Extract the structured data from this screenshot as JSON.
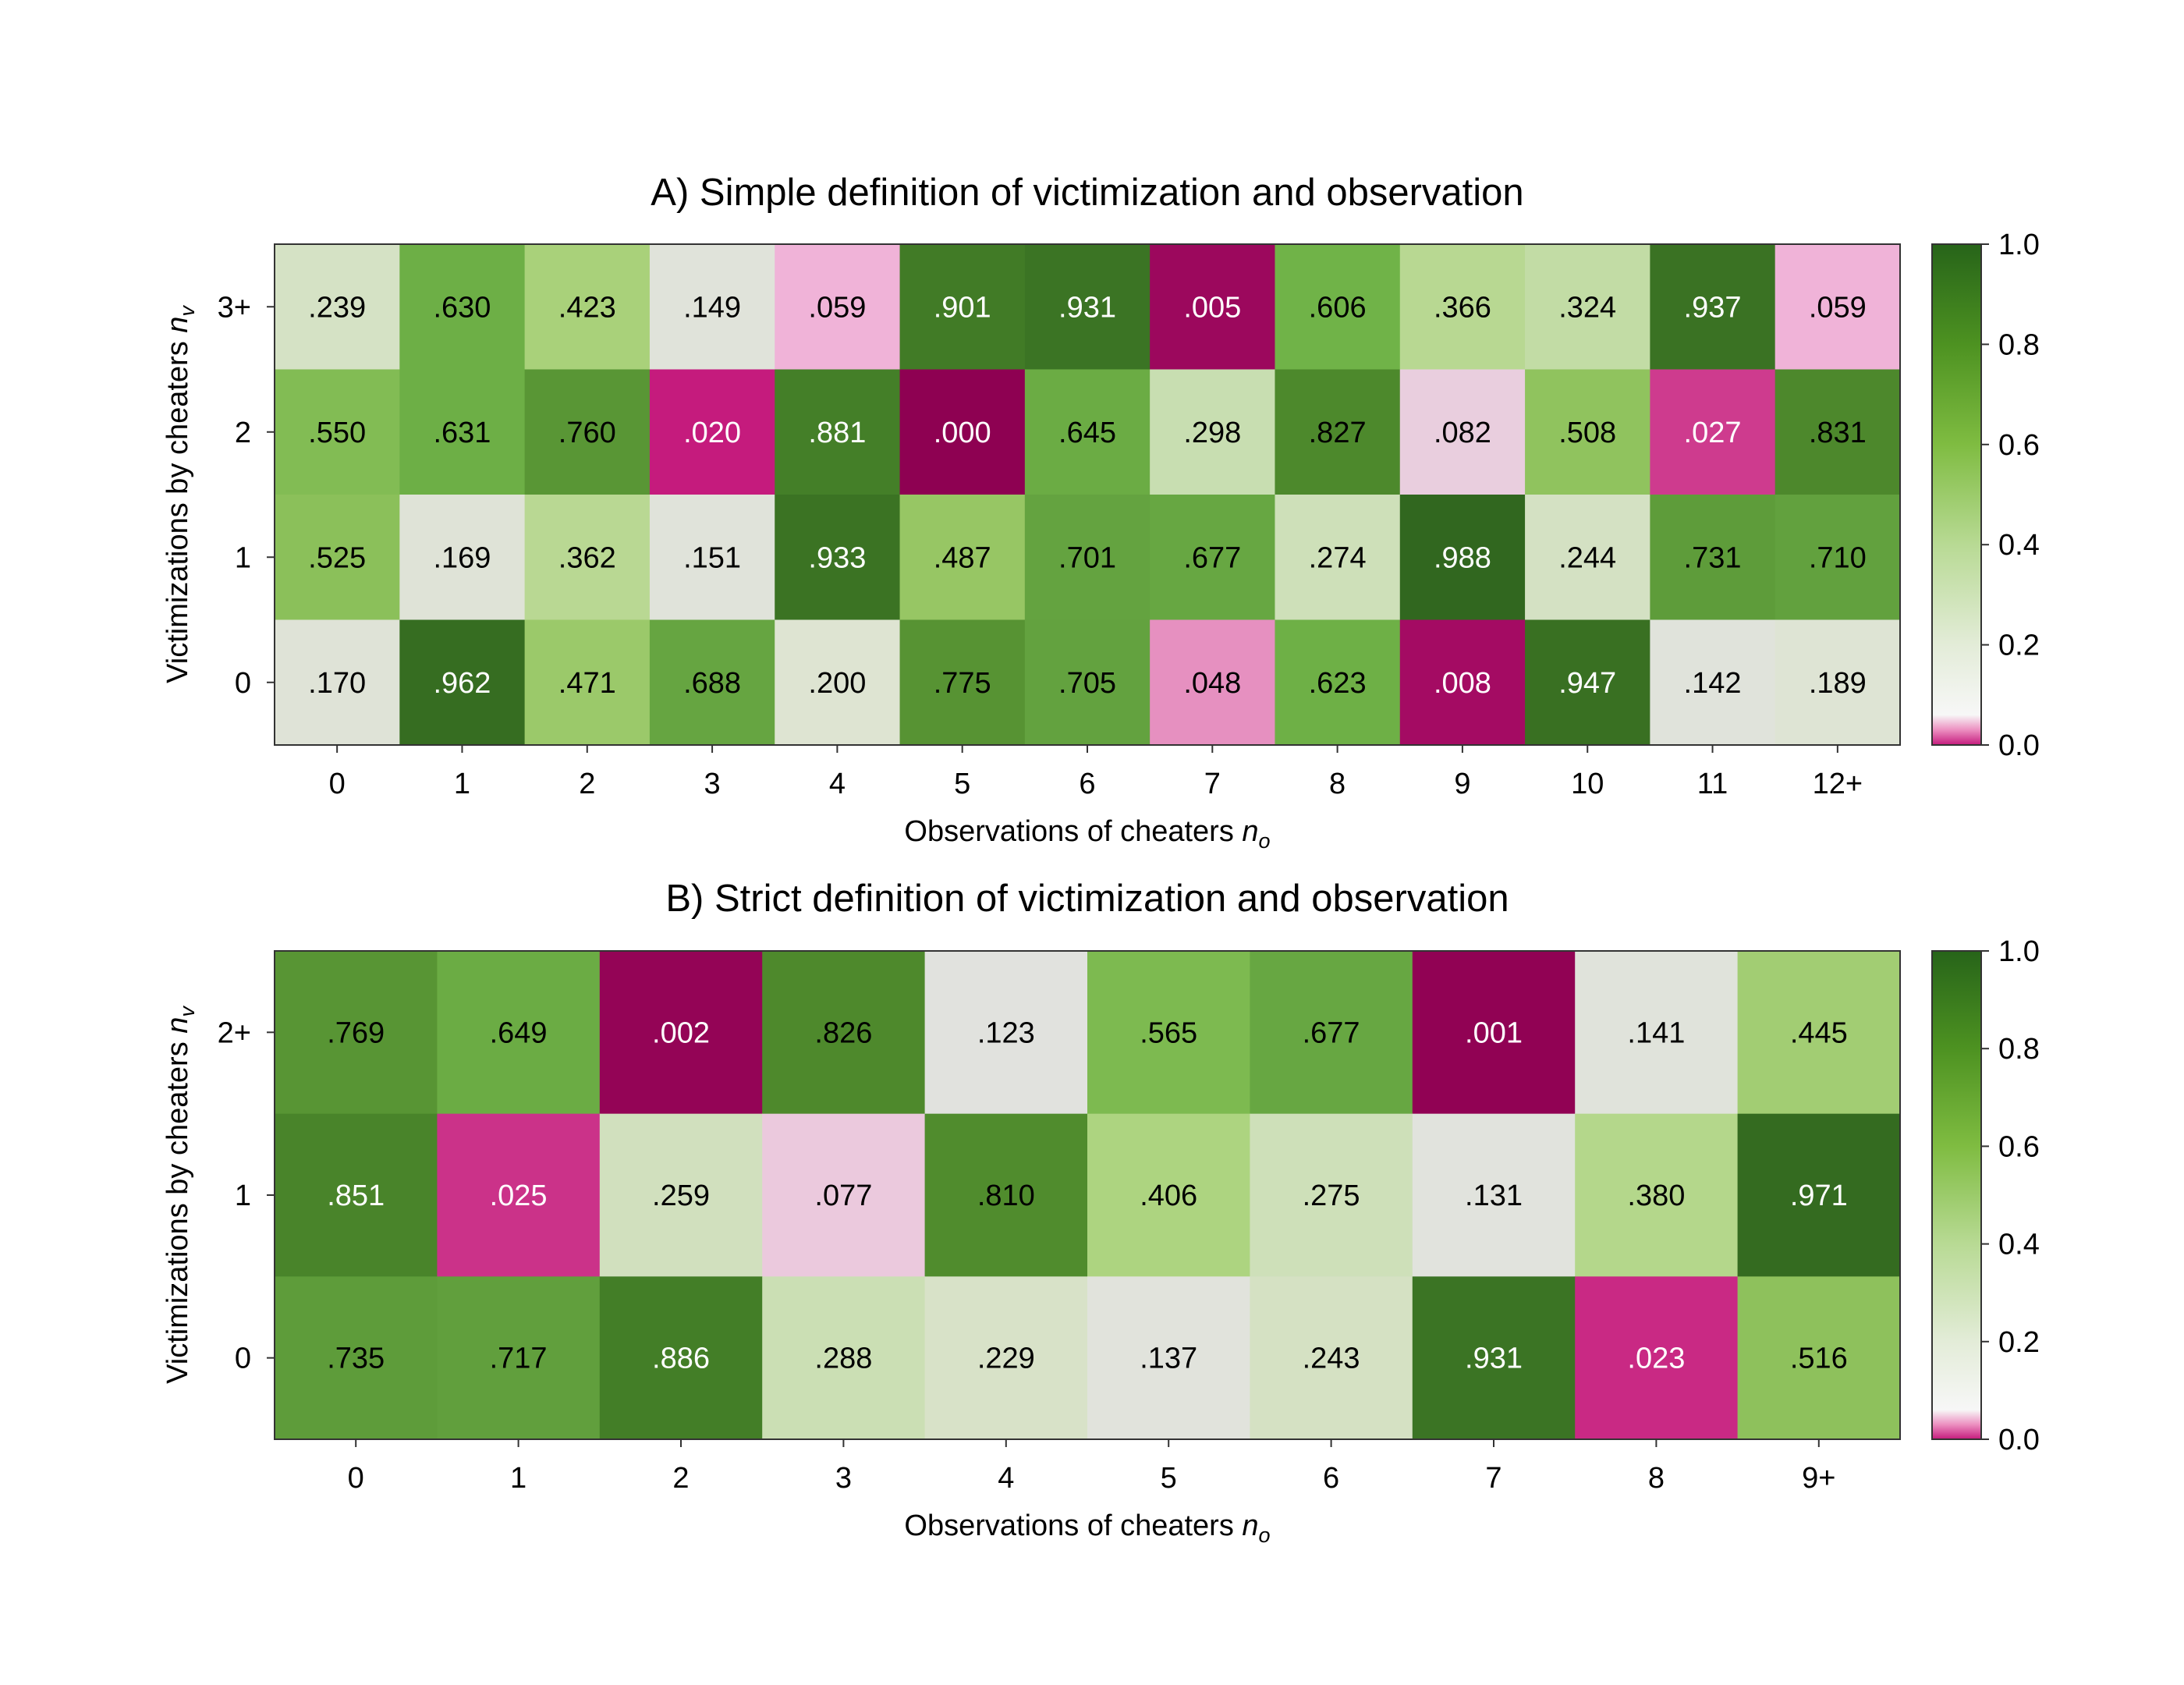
{
  "chart_data": [
    {
      "type": "heatmap",
      "title": "A) Simple definition of victimization and observation",
      "xlabel": "Observations of cheaters",
      "xlabel_var": "n",
      "xlabel_sub": "o",
      "ylabel": "Victimizations by cheaters",
      "ylabel_var": "n",
      "ylabel_sub": "v",
      "x_categories": [
        "0",
        "1",
        "2",
        "3",
        "4",
        "5",
        "6",
        "7",
        "8",
        "9",
        "10",
        "11",
        "12+"
      ],
      "y_categories": [
        "3+",
        "2",
        "1",
        "0"
      ],
      "values": [
        [
          0.239,
          0.63,
          0.423,
          0.149,
          0.059,
          0.901,
          0.931,
          0.005,
          0.606,
          0.366,
          0.324,
          0.937,
          0.059
        ],
        [
          0.55,
          0.631,
          0.76,
          0.02,
          0.881,
          0.0,
          0.645,
          0.298,
          0.827,
          0.082,
          0.508,
          0.027,
          0.831
        ],
        [
          0.525,
          0.169,
          0.362,
          0.151,
          0.933,
          0.487,
          0.701,
          0.677,
          0.274,
          0.988,
          0.244,
          0.731,
          0.71
        ],
        [
          0.17,
          0.962,
          0.471,
          0.688,
          0.2,
          0.775,
          0.705,
          0.048,
          0.623,
          0.008,
          0.947,
          0.142,
          0.189
        ]
      ],
      "labels": [
        [
          ".239",
          ".630",
          ".423",
          ".149",
          ".059",
          ".901",
          ".931",
          ".005",
          ".606",
          ".366",
          ".324",
          ".937",
          ".059"
        ],
        [
          ".550",
          ".631",
          ".760",
          ".020",
          ".881",
          ".000",
          ".645",
          ".298",
          ".827",
          ".082",
          ".508",
          ".027",
          ".831"
        ],
        [
          ".525",
          ".169",
          ".362",
          ".151",
          ".933",
          ".487",
          ".701",
          ".677",
          ".274",
          ".988",
          ".244",
          ".731",
          ".710"
        ],
        [
          ".170",
          ".962",
          ".471",
          ".688",
          ".200",
          ".775",
          ".705",
          ".048",
          ".623",
          ".008",
          ".947",
          ".142",
          ".189"
        ]
      ],
      "colorbar": {
        "range": [
          0,
          1
        ],
        "ticks": [
          "0.0",
          "0.2",
          "0.4",
          "0.6",
          "0.8",
          "1.0"
        ]
      }
    },
    {
      "type": "heatmap",
      "title": "B) Strict definition of victimization and observation",
      "xlabel": "Observations of cheaters",
      "xlabel_var": "n",
      "xlabel_sub": "o",
      "ylabel": "Victimizations by cheaters",
      "ylabel_var": "n",
      "ylabel_sub": "v",
      "x_categories": [
        "0",
        "1",
        "2",
        "3",
        "4",
        "5",
        "6",
        "7",
        "8",
        "9+"
      ],
      "y_categories": [
        "2+",
        "1",
        "0"
      ],
      "values": [
        [
          0.769,
          0.649,
          0.002,
          0.826,
          0.123,
          0.565,
          0.677,
          0.001,
          0.141,
          0.445
        ],
        [
          0.851,
          0.025,
          0.259,
          0.077,
          0.81,
          0.406,
          0.275,
          0.131,
          0.38,
          0.971
        ],
        [
          0.735,
          0.717,
          0.886,
          0.288,
          0.229,
          0.137,
          0.243,
          0.931,
          0.023,
          0.516
        ]
      ],
      "labels": [
        [
          ".769",
          ".649",
          ".002",
          ".826",
          ".123",
          ".565",
          ".677",
          ".001",
          ".141",
          ".445"
        ],
        [
          ".851",
          ".025",
          ".259",
          ".077",
          ".810",
          ".406",
          ".275",
          ".131",
          ".380",
          ".971"
        ],
        [
          ".735",
          ".717",
          ".886",
          ".288",
          ".229",
          ".137",
          ".243",
          ".931",
          ".023",
          ".516"
        ]
      ],
      "colorbar": {
        "range": [
          0,
          1
        ],
        "ticks": [
          "0.0",
          "0.2",
          "0.4",
          "0.6",
          "0.8",
          "1.0"
        ]
      }
    }
  ]
}
